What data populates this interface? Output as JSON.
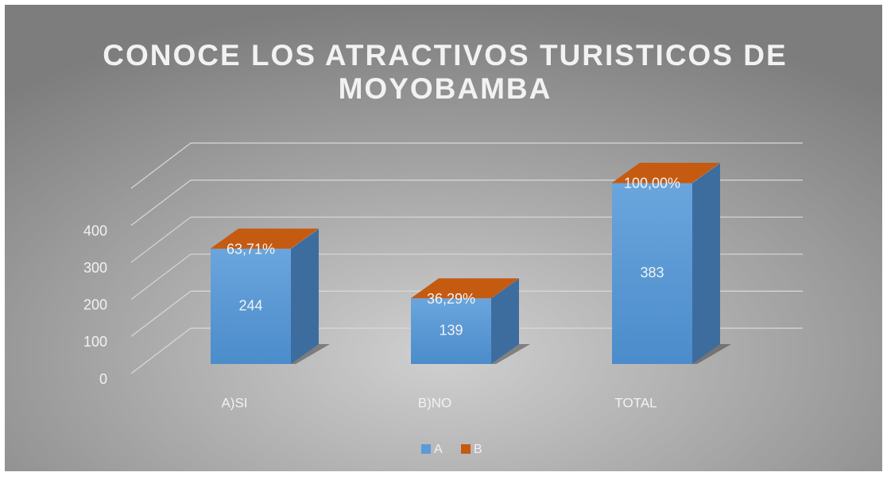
{
  "chart_data": {
    "type": "bar3d_stacked",
    "title": [
      "CONOCE LOS ATRACTIVOS TURISTICOS DE",
      "MOYOBAMBA"
    ],
    "categories": [
      "A)SI",
      "B)NO",
      "TOTAL"
    ],
    "series": [
      {
        "name": "A",
        "color": "#5b9bd5",
        "values": [
          244,
          139,
          383
        ]
      },
      {
        "name": "B",
        "color": "#c55a11",
        "values": [
          0.6371,
          0.3629,
          1
        ],
        "value_labels": [
          "63,71%",
          "36,29%",
          "100,00%"
        ]
      }
    ],
    "ylim": [
      0,
      500
    ],
    "yticks": [
      0,
      100,
      200,
      300,
      400
    ],
    "grid": true,
    "legend": "bottom"
  }
}
